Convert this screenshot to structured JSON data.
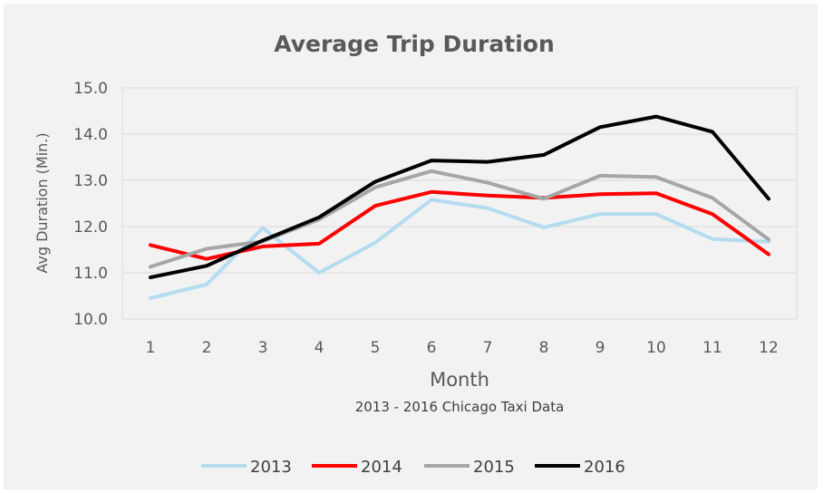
{
  "chart_data": {
    "type": "line",
    "title": "Average Trip Duration",
    "subtitle": "2013 - 2016 Chicago Taxi Data",
    "xlabel": "Month",
    "ylabel": "Avg Duration (Min.)",
    "categories": [
      "1",
      "2",
      "3",
      "4",
      "5",
      "6",
      "7",
      "8",
      "9",
      "10",
      "11",
      "12"
    ],
    "ylim": [
      10.0,
      15.0
    ],
    "yticks": [
      "10.0",
      "11.0",
      "12.0",
      "13.0",
      "14.0",
      "15.0"
    ],
    "grid": true,
    "legend_position": "bottom",
    "series": [
      {
        "name": "2013",
        "color": "#b4dcf0",
        "values": [
          10.45,
          10.75,
          11.97,
          11.0,
          11.65,
          12.58,
          12.4,
          11.98,
          12.27,
          12.27,
          11.73,
          11.67
        ]
      },
      {
        "name": "2014",
        "color": "#ff0000",
        "values": [
          11.6,
          11.3,
          11.57,
          11.63,
          12.45,
          12.75,
          12.67,
          12.62,
          12.7,
          12.72,
          12.27,
          11.4
        ]
      },
      {
        "name": "2015",
        "color": "#a6a6a6",
        "values": [
          11.13,
          11.52,
          11.68,
          12.15,
          12.85,
          13.2,
          12.95,
          12.6,
          13.1,
          13.07,
          12.62,
          11.72
        ]
      },
      {
        "name": "2016",
        "color": "#000000",
        "values": [
          10.9,
          11.15,
          11.7,
          12.2,
          12.97,
          13.43,
          13.4,
          13.55,
          14.15,
          14.38,
          14.05,
          12.6
        ]
      }
    ]
  }
}
